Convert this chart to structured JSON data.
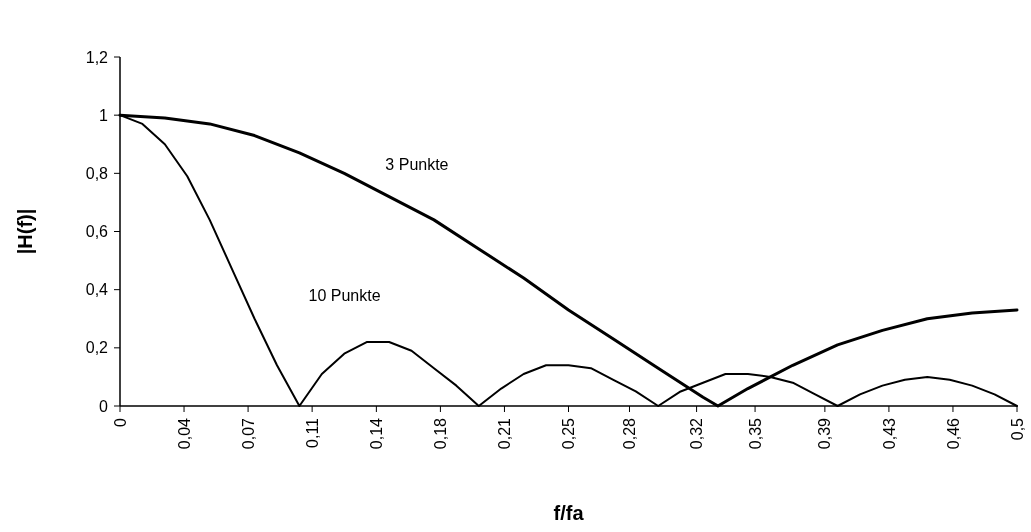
{
  "chart_data": {
    "type": "line",
    "xlabel": "f/fa",
    "ylabel": "|H(f)|",
    "xlim": [
      0,
      0.5
    ],
    "xticks": [
      {
        "value": 0,
        "label": "0"
      },
      {
        "value": 0.0357,
        "label": "0,04"
      },
      {
        "value": 0.0714,
        "label": "0,07"
      },
      {
        "value": 0.1071,
        "label": "0,11"
      },
      {
        "value": 0.1429,
        "label": "0,14"
      },
      {
        "value": 0.1786,
        "label": "0,18"
      },
      {
        "value": 0.2143,
        "label": "0,21"
      },
      {
        "value": 0.25,
        "label": "0,25"
      },
      {
        "value": 0.284,
        "label": "0,28"
      },
      {
        "value": 0.3214,
        "label": "0,32"
      },
      {
        "value": 0.354,
        "label": "0,35"
      },
      {
        "value": 0.3929,
        "label": "0,39"
      },
      {
        "value": 0.4286,
        "label": "0,43"
      },
      {
        "value": 0.4643,
        "label": "0,46"
      },
      {
        "value": 0.5,
        "label": "0,5"
      }
    ],
    "ylim": [
      0,
      1.2
    ],
    "yticks": [
      {
        "value": 0,
        "label": "0"
      },
      {
        "value": 0.2,
        "label": "0,2"
      },
      {
        "value": 0.4,
        "label": "0,4"
      },
      {
        "value": 0.6,
        "label": "0,6"
      },
      {
        "value": 0.8,
        "label": "0,8"
      },
      {
        "value": 1,
        "label": "1"
      },
      {
        "value": 1.2,
        "label": "1,2"
      }
    ],
    "grid": false,
    "marker": "none",
    "line_style": "solid",
    "series": [
      {
        "name": "3 Punkte",
        "color": "#000000",
        "x": [
          0,
          0.025,
          0.05,
          0.075,
          0.1,
          0.125,
          0.15,
          0.175,
          0.2,
          0.225,
          0.25,
          0.275,
          0.3,
          0.325,
          0.3333,
          0.35,
          0.375,
          0.4,
          0.425,
          0.45,
          0.475,
          0.5
        ],
        "values": [
          1,
          0.99,
          0.97,
          0.93,
          0.87,
          0.8,
          0.72,
          0.64,
          0.54,
          0.44,
          0.33,
          0.23,
          0.13,
          0.03,
          0,
          0.06,
          0.14,
          0.21,
          0.26,
          0.3,
          0.32,
          0.33
        ]
      },
      {
        "name": "10 Punkte",
        "color": "#000000",
        "x": [
          0,
          0.0125,
          0.025,
          0.0375,
          0.05,
          0.0625,
          0.075,
          0.0875,
          0.1,
          0.1125,
          0.125,
          0.1375,
          0.15,
          0.1625,
          0.175,
          0.1875,
          0.2,
          0.2125,
          0.225,
          0.2375,
          0.25,
          0.2625,
          0.275,
          0.2875,
          0.3,
          0.3125,
          0.325,
          0.3375,
          0.35,
          0.3625,
          0.375,
          0.3875,
          0.4,
          0.4125,
          0.425,
          0.4375,
          0.45,
          0.4625,
          0.475,
          0.4875,
          0.5
        ],
        "values": [
          1,
          0.97,
          0.9,
          0.79,
          0.64,
          0.47,
          0.3,
          0.14,
          0,
          0.11,
          0.18,
          0.22,
          0.22,
          0.19,
          0.13,
          0.07,
          0,
          0.06,
          0.11,
          0.14,
          0.14,
          0.13,
          0.09,
          0.05,
          0,
          0.05,
          0.08,
          0.11,
          0.11,
          0.1,
          0.08,
          0.04,
          0,
          0.04,
          0.07,
          0.09,
          0.1,
          0.09,
          0.07,
          0.04,
          0
        ]
      }
    ]
  }
}
